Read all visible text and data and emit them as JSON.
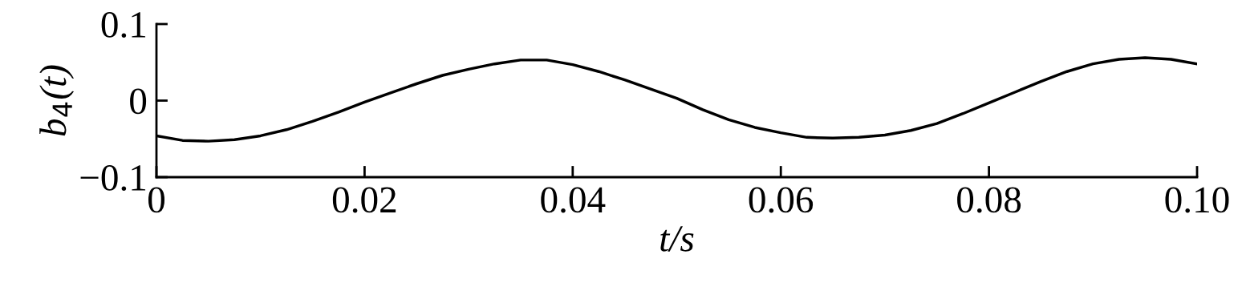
{
  "chart_data": {
    "type": "line",
    "xlabel": "t/s",
    "ylabel": "b$_{4}$(t)",
    "x": [
      0,
      0.0025,
      0.005,
      0.0075,
      0.01,
      0.0125,
      0.015,
      0.0175,
      0.02,
      0.0225,
      0.025,
      0.0275,
      0.03,
      0.0325,
      0.035,
      0.0375,
      0.04,
      0.0425,
      0.045,
      0.0475,
      0.05,
      0.0525,
      0.055,
      0.0575,
      0.06,
      0.0625,
      0.065,
      0.0675,
      0.07,
      0.0725,
      0.075,
      0.0775,
      0.08,
      0.0825,
      0.085,
      0.0875,
      0.09,
      0.0925,
      0.095,
      0.0975,
      0.1
    ],
    "series": [
      {
        "color": "#000000",
        "values": [
          -0.046,
          -0.052,
          -0.053,
          -0.051,
          -0.046,
          -0.038,
          -0.027,
          -0.015,
          -0.002,
          0.01,
          0.022,
          0.033,
          0.041,
          0.048,
          0.053,
          0.053,
          0.047,
          0.038,
          0.027,
          0.015,
          0.003,
          -0.012,
          -0.025,
          -0.035,
          -0.042,
          -0.048,
          -0.049,
          -0.048,
          -0.045,
          -0.039,
          -0.03,
          -0.017,
          -0.003,
          0.011,
          0.025,
          0.038,
          0.048,
          0.054,
          0.056,
          0.054,
          0.048
        ]
      }
    ],
    "xlim": [
      0,
      0.1
    ],
    "xticks": [
      0,
      0.02,
      0.04,
      0.06,
      0.08,
      {
        "value": 0.1,
        "label": "0.10"
      }
    ],
    "ylim": [
      -0.1,
      0.1
    ],
    "yticks": [
      {
        "value": -0.1,
        "label": "−0.1"
      },
      0,
      0.1
    ],
    "grid": false,
    "legend": false
  }
}
